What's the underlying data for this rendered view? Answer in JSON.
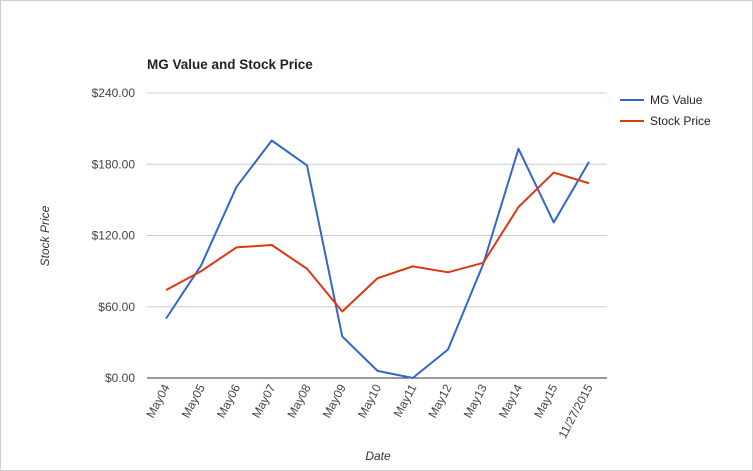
{
  "chart_data": {
    "type": "line",
    "title": "MG Value and Stock Price",
    "xlabel": "Date",
    "ylabel": "Stock Price",
    "categories": [
      "May04",
      "May05",
      "May06",
      "May07",
      "May08",
      "May09",
      "May10",
      "May11",
      "May12",
      "May13",
      "May14",
      "May15",
      "11/27/2015"
    ],
    "ylim": [
      0,
      240
    ],
    "yticks": [
      0,
      60,
      120,
      180,
      240
    ],
    "ytick_labels": [
      "$0.00",
      "$60.00",
      "$120.00",
      "$180.00",
      "$240.00"
    ],
    "grid": true,
    "legend_position": "right",
    "series": [
      {
        "name": "MG Value",
        "color": "#3366cc",
        "values": [
          50,
          95,
          161,
          200,
          179,
          35,
          6,
          0,
          24,
          96,
          193,
          131,
          182
        ]
      },
      {
        "name": "Stock Price",
        "color": "#dc3912",
        "values": [
          74,
          90,
          110,
          112,
          92,
          56,
          84,
          94,
          89,
          97,
          144,
          173,
          164
        ]
      }
    ]
  }
}
